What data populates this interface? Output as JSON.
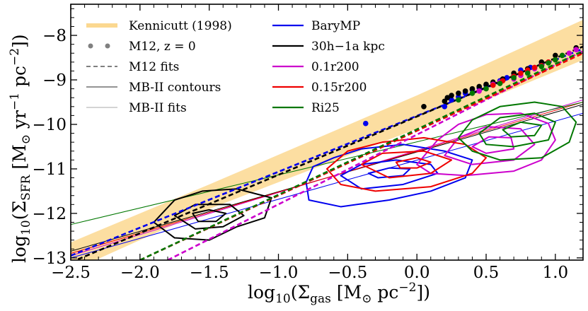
{
  "chart_data": {
    "type": "scatter",
    "xlabel": "log10(Σgas [M⊙ pc−2])",
    "ylabel": "log10(ΣSFR [M⊙ yr−1 pc−2])",
    "xlim": [
      -2.5,
      1.2
    ],
    "ylim": [
      -13.05,
      -7.3
    ],
    "xticks": [
      -2.5,
      -2.0,
      -1.5,
      -1.0,
      -0.5,
      0.0,
      0.5,
      1.0
    ],
    "xtick_labels": [
      "−2.5",
      "−2.0",
      "−1.5",
      "−1.0",
      "−0.5",
      "0.0",
      "0.5",
      "1.0"
    ],
    "yticks": [
      -13,
      -12,
      -11,
      -10,
      -9,
      -8
    ],
    "ytick_labels": [
      "−13",
      "−12",
      "−11",
      "−10",
      "−9",
      "−8"
    ],
    "kennicutt_band": {
      "label": "Kennicutt (1998)",
      "color": "#fbd890",
      "lower": [
        [
          -2.5,
          -13.3
        ],
        [
          -1.5,
          -11.9
        ],
        [
          0.0,
          -10.1
        ],
        [
          1.2,
          -8.55
        ]
      ],
      "upper": [
        [
          -2.5,
          -12.65
        ],
        [
          -1.5,
          -11.35
        ],
        [
          0.0,
          -9.35
        ],
        [
          1.2,
          -7.65
        ]
      ]
    },
    "legend": [
      {
        "label": "Kennicutt (1998)",
        "kind": "band",
        "color": "#fbd890"
      },
      {
        "label": "M12, z = 0",
        "kind": "dots",
        "color": "#808080"
      },
      {
        "label": "M12 fits",
        "kind": "dashed",
        "color": "#808080"
      },
      {
        "label": "MB-II contours",
        "kind": "line",
        "color": "#555555"
      },
      {
        "label": "MB-II fits",
        "kind": "thin",
        "color": "#aaaaaa"
      },
      {
        "label": "BaryMP",
        "kind": "line",
        "color": "#0000ee"
      },
      {
        "label": "30h−1a kpc",
        "kind": "line",
        "color": "#000000"
      },
      {
        "label": "0.1r200",
        "kind": "line",
        "color": "#cc00cc"
      },
      {
        "label": "0.15r200",
        "kind": "line",
        "color": "#ee0000"
      },
      {
        "label": "Ri25",
        "kind": "line",
        "color": "#007700"
      }
    ],
    "series": [
      {
        "name": "BaryMP",
        "color": "#0000ee",
        "m12_points": [
          [
            -0.37,
            -9.98
          ],
          [
            0.2,
            -9.6
          ],
          [
            0.25,
            -9.45
          ],
          [
            0.3,
            -9.38
          ],
          [
            0.35,
            -9.3
          ],
          [
            0.4,
            -9.22
          ],
          [
            0.45,
            -9.18
          ],
          [
            0.5,
            -9.12
          ],
          [
            0.55,
            -9.08
          ],
          [
            0.6,
            -9.02
          ],
          [
            0.65,
            -8.95
          ],
          [
            0.7,
            -8.9
          ],
          [
            0.75,
            -8.78
          ],
          [
            0.82,
            -8.72
          ],
          [
            0.9,
            -8.65
          ]
        ],
        "m12_fit": [
          [
            -2.5,
            -12.95
          ],
          [
            1.2,
            -8.3
          ]
        ],
        "mb2_fit": [
          [
            -2.5,
            -13.0
          ],
          [
            1.2,
            -9.75
          ]
        ],
        "contours": [
          [
            [
              -0.8,
              -11.3
            ],
            [
              -0.75,
              -10.95
            ],
            [
              -0.6,
              -10.75
            ],
            [
              -0.4,
              -10.55
            ],
            [
              -0.1,
              -10.45
            ],
            [
              0.2,
              -10.6
            ],
            [
              0.4,
              -10.8
            ],
            [
              0.35,
              -11.2
            ],
            [
              0.1,
              -11.5
            ],
            [
              -0.2,
              -11.7
            ],
            [
              -0.55,
              -11.85
            ],
            [
              -0.78,
              -11.7
            ]
          ],
          [
            [
              -0.55,
              -11.15
            ],
            [
              -0.4,
              -10.9
            ],
            [
              -0.15,
              -10.8
            ],
            [
              0.1,
              -10.9
            ],
            [
              0.15,
              -11.1
            ],
            [
              -0.1,
              -11.35
            ],
            [
              -0.4,
              -11.45
            ]
          ],
          [
            [
              -0.35,
              -11.1
            ],
            [
              -0.2,
              -10.98
            ],
            [
              -0.05,
              -11.0
            ],
            [
              -0.1,
              -11.15
            ],
            [
              -0.28,
              -11.2
            ]
          ]
        ]
      },
      {
        "name": "30h-1a kpc",
        "color": "#000000",
        "m12_points": [
          [
            0.05,
            -9.6
          ],
          [
            0.2,
            -9.48
          ],
          [
            0.22,
            -9.4
          ],
          [
            0.25,
            -9.35
          ],
          [
            0.3,
            -9.3
          ],
          [
            0.35,
            -9.25
          ],
          [
            0.4,
            -9.2
          ],
          [
            0.45,
            -9.15
          ],
          [
            0.5,
            -9.1
          ],
          [
            0.55,
            -9.05
          ],
          [
            0.62,
            -8.98
          ],
          [
            0.7,
            -8.85
          ],
          [
            0.8,
            -8.75
          ],
          [
            0.9,
            -8.6
          ],
          [
            1.0,
            -8.45
          ],
          [
            1.15,
            -8.28
          ]
        ],
        "m12_fit": [
          [
            -2.5,
            -13.1
          ],
          [
            1.2,
            -8.25
          ]
        ],
        "mb2_fit": [
          [
            -2.5,
            -12.85
          ],
          [
            1.2,
            -9.55
          ]
        ],
        "contours": [
          [
            [
              -1.9,
              -12.2
            ],
            [
              -1.75,
              -11.7
            ],
            [
              -1.55,
              -11.5
            ],
            [
              -1.3,
              -11.45
            ],
            [
              -1.05,
              -11.65
            ],
            [
              -1.1,
              -12.1
            ],
            [
              -1.3,
              -12.3
            ],
            [
              -1.5,
              -12.6
            ],
            [
              -1.75,
              -12.55
            ]
          ],
          [
            [
              -1.75,
              -12.05
            ],
            [
              -1.6,
              -11.8
            ],
            [
              -1.35,
              -11.8
            ],
            [
              -1.25,
              -12.05
            ],
            [
              -1.4,
              -12.3
            ],
            [
              -1.6,
              -12.35
            ]
          ],
          [
            [
              -1.62,
              -12.0
            ],
            [
              -1.5,
              -11.92
            ],
            [
              -1.38,
              -12.0
            ],
            [
              -1.45,
              -12.18
            ],
            [
              -1.58,
              -12.18
            ]
          ]
        ]
      },
      {
        "name": "0.1r200",
        "color": "#cc00cc",
        "m12_points": [
          [
            0.45,
            -9.25
          ],
          [
            0.55,
            -9.1
          ],
          [
            0.6,
            -9.05
          ],
          [
            0.7,
            -8.98
          ],
          [
            0.75,
            -8.9
          ],
          [
            0.8,
            -8.82
          ],
          [
            0.85,
            -8.75
          ],
          [
            0.9,
            -8.68
          ],
          [
            0.95,
            -8.6
          ],
          [
            1.0,
            -8.55
          ],
          [
            1.05,
            -8.45
          ],
          [
            1.1,
            -8.4
          ],
          [
            1.15,
            -8.32
          ]
        ],
        "m12_fit": [
          [
            -1.8,
            -13.05
          ],
          [
            1.2,
            -8.35
          ]
        ],
        "mb2_fit": [
          [
            -2.5,
            -12.95
          ],
          [
            1.2,
            -9.45
          ]
        ],
        "contours": [
          [
            [
              0.0,
              -10.9
            ],
            [
              0.15,
              -10.35
            ],
            [
              0.3,
              -10.0
            ],
            [
              0.5,
              -9.78
            ],
            [
              0.75,
              -9.75
            ],
            [
              0.95,
              -9.98
            ],
            [
              1.0,
              -10.35
            ],
            [
              0.9,
              -10.8
            ],
            [
              0.7,
              -11.05
            ],
            [
              0.35,
              -11.15
            ],
            [
              0.1,
              -11.1
            ]
          ],
          [
            [
              0.2,
              -10.7
            ],
            [
              0.3,
              -10.3
            ],
            [
              0.5,
              -10.05
            ],
            [
              0.75,
              -10.1
            ],
            [
              0.85,
              -10.45
            ],
            [
              0.7,
              -10.8
            ],
            [
              0.4,
              -10.9
            ]
          ],
          [
            [
              0.4,
              -10.5
            ],
            [
              0.52,
              -10.28
            ],
            [
              0.68,
              -10.3
            ],
            [
              0.7,
              -10.55
            ],
            [
              0.5,
              -10.65
            ]
          ]
        ]
      },
      {
        "name": "0.15r200",
        "color": "#ee0000",
        "m12_points": [
          [
            0.55,
            -9.12
          ],
          [
            0.62,
            -9.02
          ],
          [
            0.7,
            -8.92
          ],
          [
            0.75,
            -8.85
          ],
          [
            0.8,
            -8.78
          ],
          [
            0.85,
            -8.72
          ],
          [
            0.9,
            -8.68
          ],
          [
            0.95,
            -8.6
          ],
          [
            1.0,
            -8.55
          ]
        ],
        "m12_fit": [
          [
            -2.0,
            -13.05
          ],
          [
            1.2,
            -8.4
          ]
        ],
        "mb2_fit": [
          [
            -2.5,
            -12.9
          ],
          [
            1.2,
            -9.5
          ]
        ],
        "contours": [
          [
            [
              -0.65,
              -11.0
            ],
            [
              -0.5,
              -10.6
            ],
            [
              -0.25,
              -10.4
            ],
            [
              0.05,
              -10.3
            ],
            [
              0.35,
              -10.45
            ],
            [
              0.5,
              -10.75
            ],
            [
              0.4,
              -11.1
            ],
            [
              0.1,
              -11.4
            ],
            [
              -0.3,
              -11.5
            ],
            [
              -0.55,
              -11.35
            ]
          ],
          [
            [
              -0.4,
              -10.9
            ],
            [
              -0.25,
              -10.65
            ],
            [
              0.05,
              -10.6
            ],
            [
              0.25,
              -10.8
            ],
            [
              0.1,
              -11.1
            ],
            [
              -0.2,
              -11.2
            ]
          ],
          [
            [
              -0.15,
              -10.85
            ],
            [
              0.0,
              -10.75
            ],
            [
              0.1,
              -10.85
            ],
            [
              0.0,
              -10.98
            ],
            [
              -0.12,
              -10.98
            ]
          ]
        ]
      },
      {
        "name": "Ri25",
        "color": "#007700",
        "m12_points": [
          [
            0.3,
            -9.45
          ],
          [
            0.4,
            -9.3
          ],
          [
            0.5,
            -9.2
          ],
          [
            0.6,
            -9.08
          ],
          [
            0.7,
            -8.95
          ],
          [
            0.8,
            -8.85
          ],
          [
            0.9,
            -8.7
          ],
          [
            0.95,
            -8.62
          ],
          [
            1.0,
            -8.55
          ],
          [
            1.05,
            -8.45
          ]
        ],
        "m12_fit": [
          [
            -2.0,
            -13.05
          ],
          [
            1.2,
            -8.35
          ]
        ],
        "mb2_fit": [
          [
            -2.5,
            -12.25
          ],
          [
            1.2,
            -9.5
          ]
        ],
        "contours": [
          [
            [
              0.3,
              -10.3
            ],
            [
              0.4,
              -9.9
            ],
            [
              0.6,
              -9.6
            ],
            [
              0.85,
              -9.5
            ],
            [
              1.05,
              -9.6
            ],
            [
              1.15,
              -9.95
            ],
            [
              1.1,
              -10.4
            ],
            [
              0.9,
              -10.75
            ],
            [
              0.6,
              -10.8
            ],
            [
              0.4,
              -10.6
            ]
          ],
          [
            [
              0.45,
              -10.2
            ],
            [
              0.6,
              -9.85
            ],
            [
              0.85,
              -9.75
            ],
            [
              1.0,
              -9.95
            ],
            [
              0.95,
              -10.35
            ],
            [
              0.7,
              -10.5
            ],
            [
              0.5,
              -10.45
            ]
          ],
          [
            [
              0.62,
              -10.12
            ],
            [
              0.75,
              -9.95
            ],
            [
              0.9,
              -10.02
            ],
            [
              0.85,
              -10.25
            ],
            [
              0.68,
              -10.28
            ]
          ]
        ]
      }
    ]
  }
}
